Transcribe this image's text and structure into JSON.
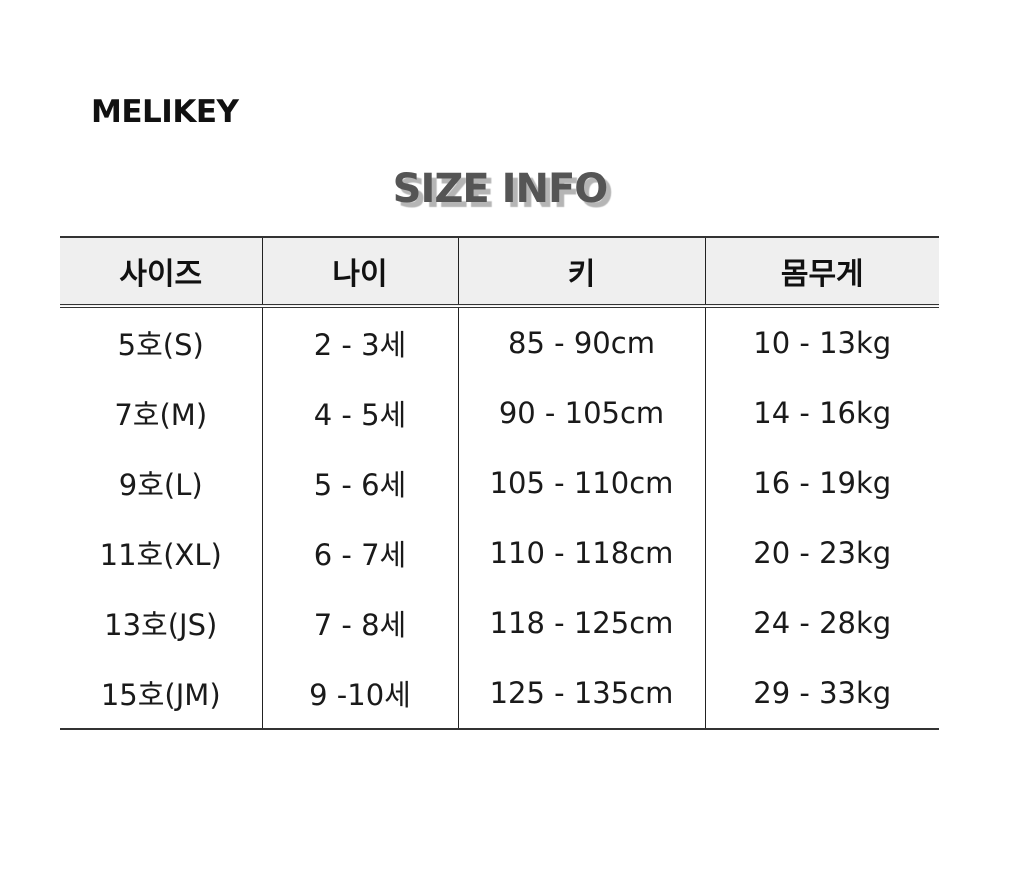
{
  "brand": "MELIKEY",
  "title": "SIZE INFO",
  "table": {
    "headers": [
      "사이즈",
      "나이",
      "키",
      "몸무게"
    ],
    "rows": [
      [
        "5호(S)",
        "2 - 3세",
        "85 - 90cm",
        "10 - 13kg"
      ],
      [
        "7호(M)",
        "4 - 5세",
        "90 - 105cm",
        "14 - 16kg"
      ],
      [
        "9호(L)",
        "5 - 6세",
        "105 - 110cm",
        "16 - 19kg"
      ],
      [
        "11호(XL)",
        "6 - 7세",
        "110 - 118cm",
        "20 - 23kg"
      ],
      [
        "13호(JS)",
        "7 - 8세",
        "118 - 125cm",
        "24 - 28kg"
      ],
      [
        "15호(JM)",
        "9 -10세",
        "125 - 135cm",
        "29 - 33kg"
      ]
    ]
  }
}
